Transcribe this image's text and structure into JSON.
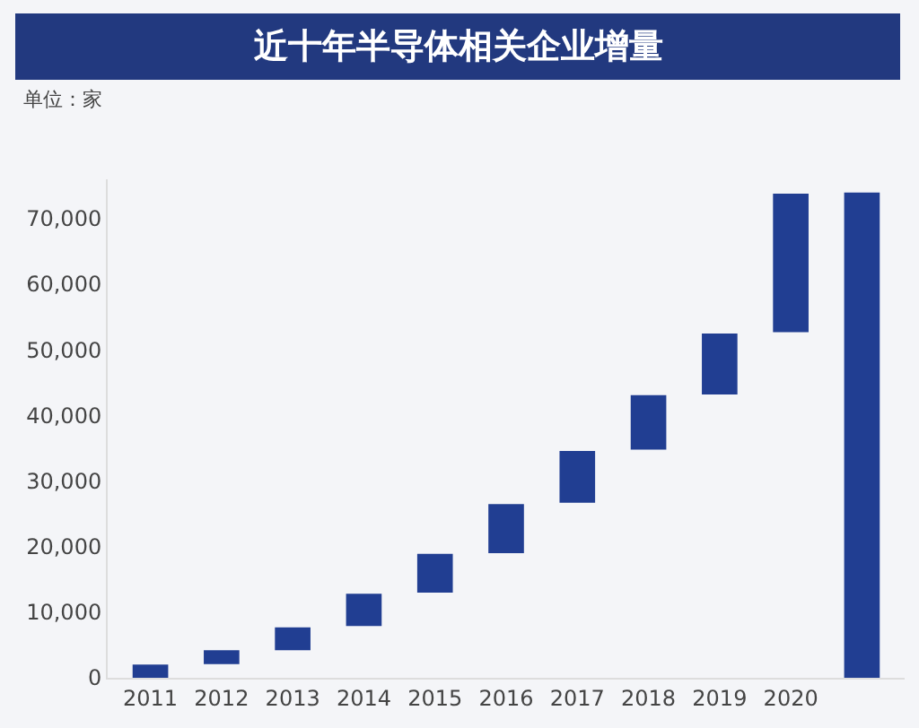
{
  "chart_data": {
    "type": "bar",
    "title": "近十年半导体相关企业增量",
    "annotations": [
      "单位：家"
    ],
    "categories": [
      "2011",
      "2012",
      "2013",
      "2014",
      "2015",
      "2016",
      "2017",
      "2018",
      "2019",
      "2020",
      null
    ],
    "base": [
      0,
      2100,
      4200,
      7900,
      13000,
      19000,
      26700,
      34800,
      43200,
      52700,
      0
    ],
    "values": [
      2000,
      2100,
      3500,
      4900,
      5900,
      7500,
      7900,
      8300,
      9300,
      21100,
      74000
    ],
    "color": "#213e92",
    "ylim": [
      0,
      76000
    ],
    "yticks": [
      {
        "value": 0,
        "label": "0"
      },
      {
        "value": 10000,
        "label": "10,000"
      },
      {
        "value": 20000,
        "label": "20,000"
      },
      {
        "value": 30000,
        "label": "30,000"
      },
      {
        "value": 40000,
        "label": "40,000"
      },
      {
        "value": 50000,
        "label": "50,000"
      },
      {
        "value": 60000,
        "label": "60,000"
      },
      {
        "value": 70000,
        "label": "70,000"
      }
    ],
    "grid": false
  }
}
